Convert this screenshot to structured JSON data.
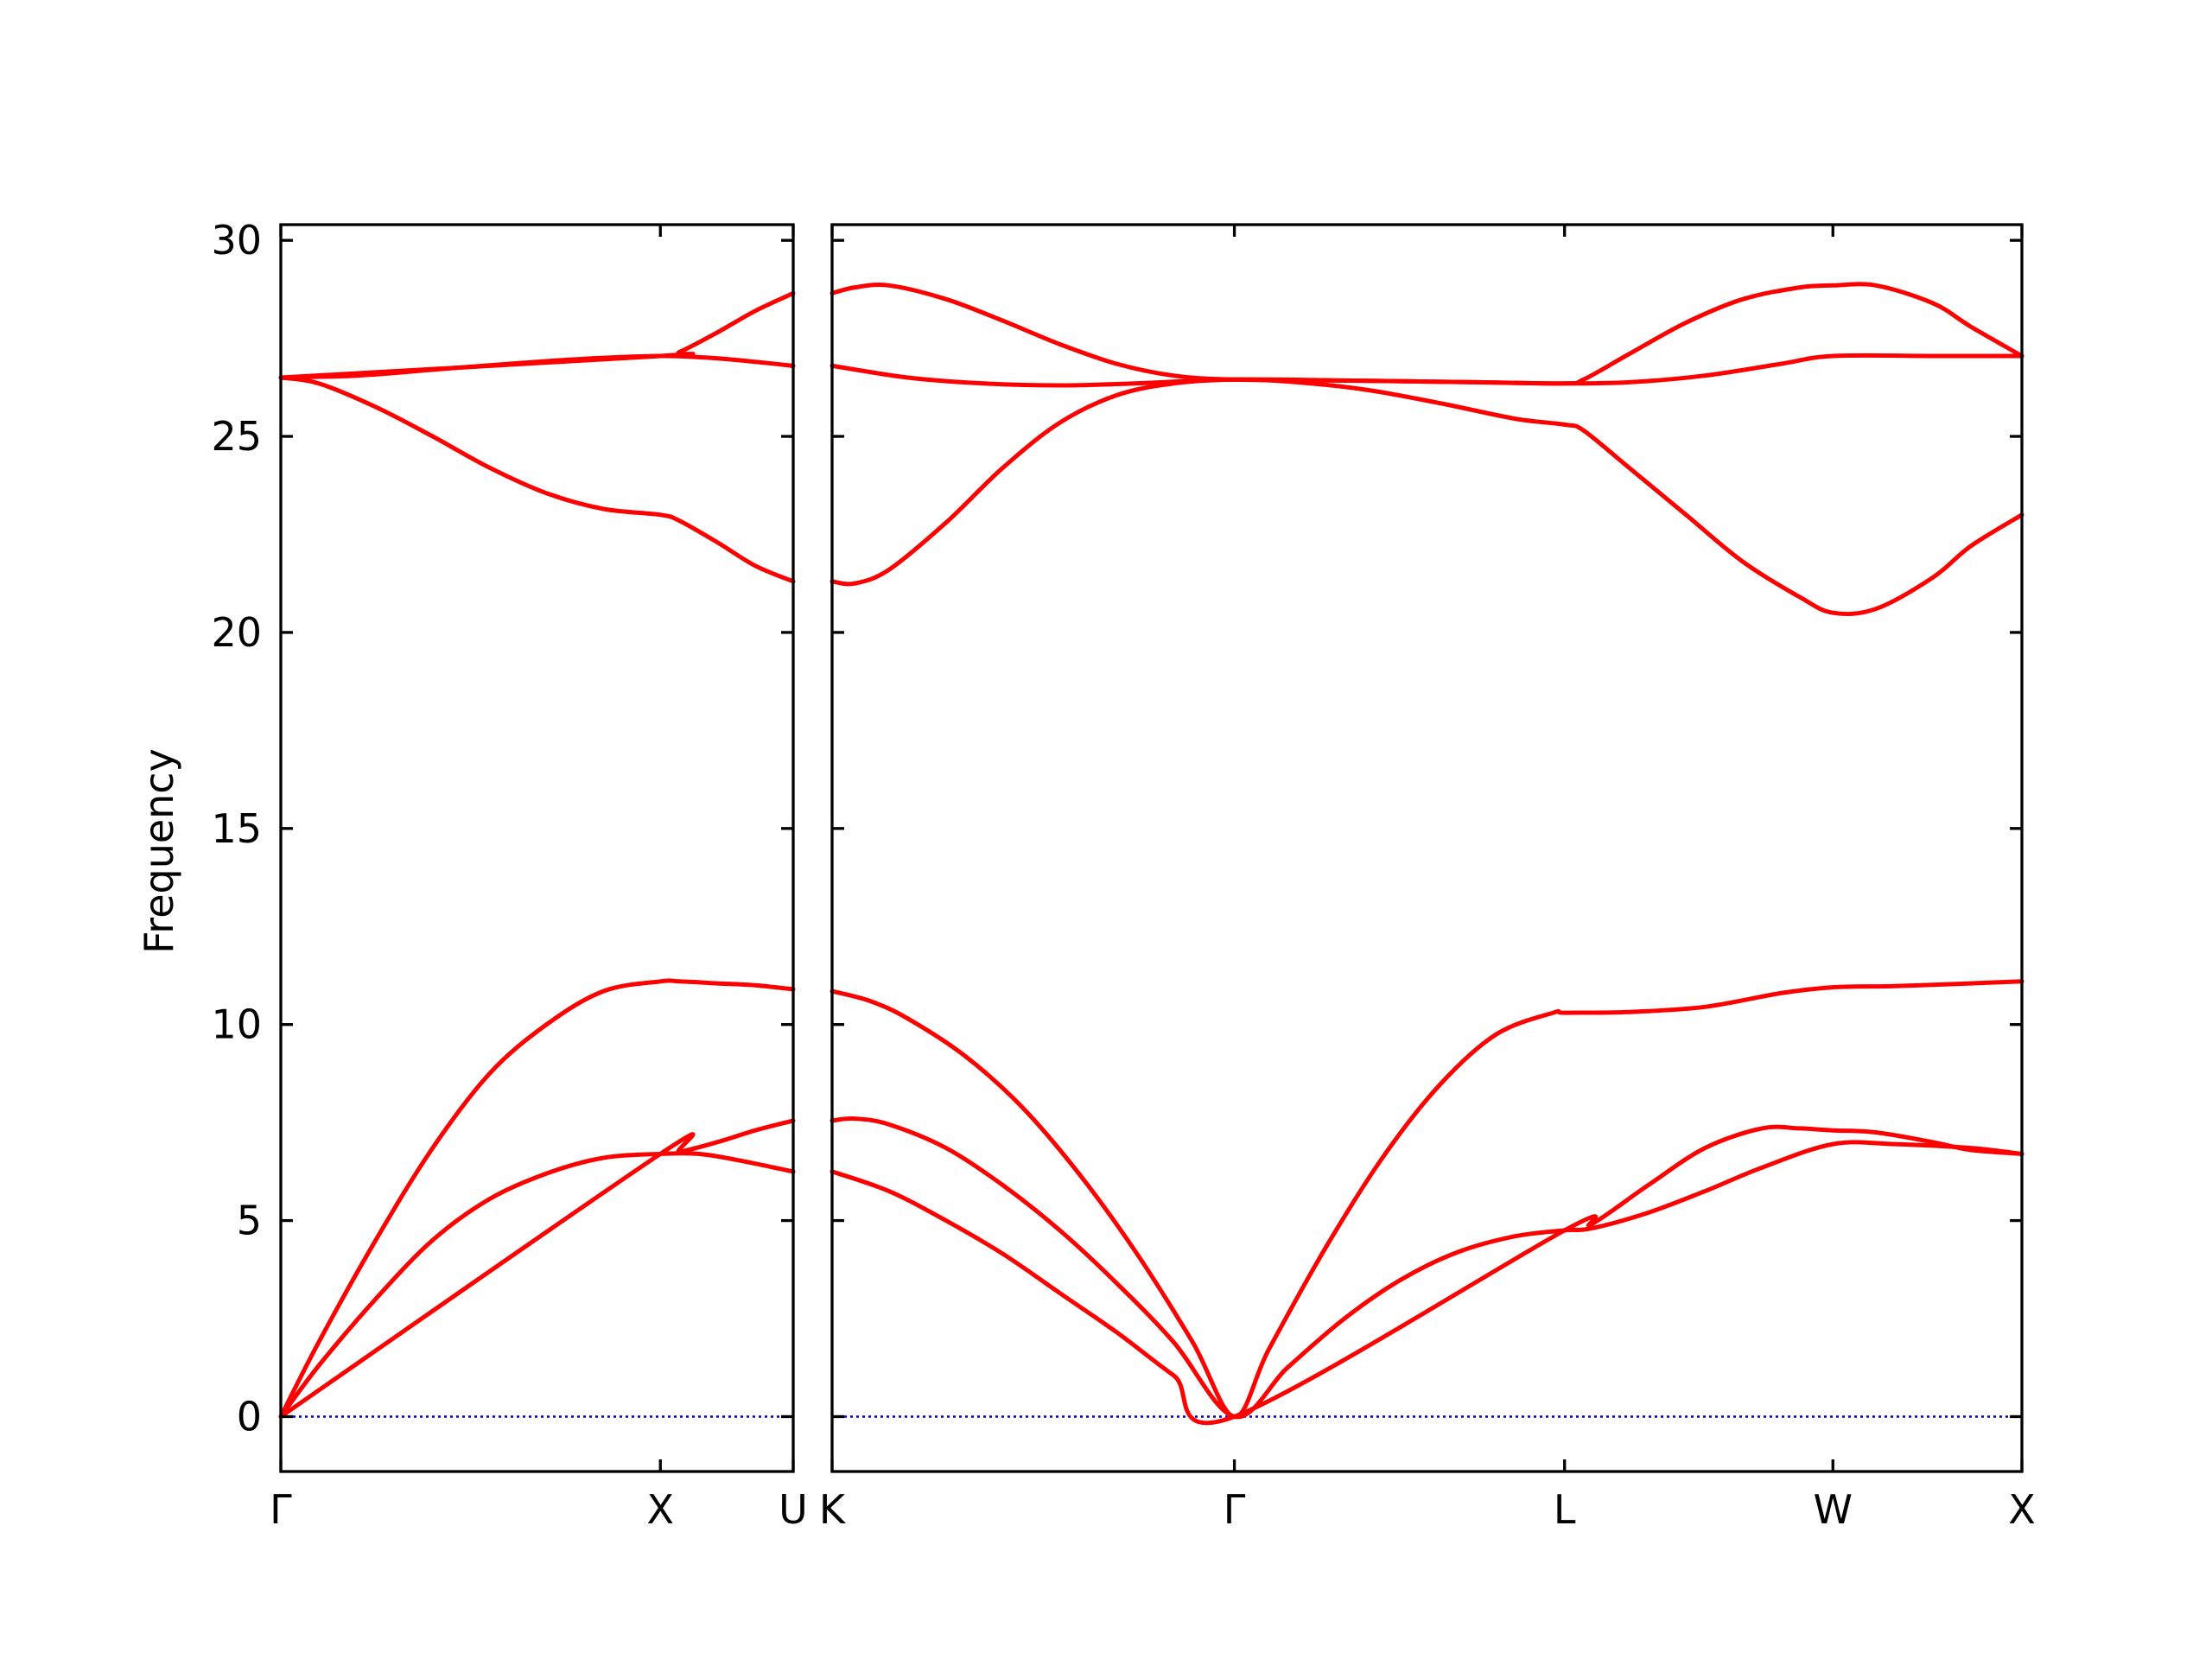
{
  "chart_data": {
    "type": "line",
    "title": "",
    "ylabel": "Frequency",
    "ylim": [
      -1.4,
      30.4
    ],
    "yticks": [
      0,
      5,
      10,
      15,
      20,
      25,
      30
    ],
    "ytick_labels": [
      "0",
      "5",
      "10",
      "15",
      "20",
      "25",
      "30"
    ],
    "band_color": "#ff0000",
    "zero_line_color": "#0000cc",
    "grid": false,
    "panels": [
      {
        "xlim": [
          0,
          1.35
        ],
        "xticks": [
          {
            "x": 0,
            "label": "Γ"
          },
          {
            "x": 1.0,
            "label": "X"
          },
          {
            "x": 1.35,
            "label": "U"
          }
        ],
        "series": [
          {
            "x": [
              0,
              0.1,
              0.25,
              0.4,
              0.55,
              0.7,
              0.85,
              1.0,
              1.05,
              1.15,
              1.25,
              1.35
            ],
            "values": [
              0,
              1.9,
              4.5,
              6.85,
              8.75,
              10.0,
              10.85,
              11.1,
              11.1,
              11.05,
              11.0,
              10.9
            ]
          },
          {
            "x": [
              0,
              0.1,
              0.25,
              0.4,
              0.55,
              0.7,
              0.85,
              1.0,
              1.1,
              1.2,
              1.35
            ],
            "values": [
              0,
              1.3,
              3.0,
              4.5,
              5.55,
              6.2,
              6.6,
              6.7,
              6.7,
              6.55,
              6.25
            ]
          },
          {
            "x": [
              0,
              1.0,
              1.05,
              1.15,
              1.25,
              1.35
            ],
            "values": [
              0,
              6.7,
              6.75,
              7.0,
              7.3,
              7.55
            ]
          },
          {
            "x": [
              0,
              0.1,
              0.25,
              0.4,
              0.55,
              0.7,
              0.85,
              1.0,
              1.05,
              1.15,
              1.25,
              1.35
            ],
            "values": [
              26.5,
              26.35,
              25.75,
              25.0,
              24.2,
              23.55,
              23.15,
              23.0,
              22.85,
              22.3,
              21.7,
              21.3
            ]
          },
          {
            "x": [
              0,
              0.2,
              0.4,
              0.6,
              0.8,
              1.0,
              1.1,
              1.2,
              1.35
            ],
            "values": [
              26.5,
              26.55,
              26.7,
              26.85,
              26.98,
              27.05,
              27.02,
              26.95,
              26.8
            ]
          },
          {
            "x": [
              0,
              1.0,
              1.05,
              1.15,
              1.25,
              1.35
            ],
            "values": [
              26.5,
              27.05,
              27.15,
              27.65,
              28.2,
              28.65
            ]
          }
        ],
        "zero_line": true
      },
      {
        "xlim": [
          0,
          3.135
        ],
        "xticks": [
          {
            "x": 0,
            "label": "K"
          },
          {
            "x": 1.06,
            "label": "Γ"
          },
          {
            "x": 1.93,
            "label": "L"
          },
          {
            "x": 2.637,
            "label": "W"
          },
          {
            "x": 3.135,
            "label": "X"
          }
        ],
        "series": [
          {
            "x": [
              0,
              0.1,
              0.2,
              0.35,
              0.5,
              0.65,
              0.8,
              0.95,
              1.06,
              1.15,
              1.3,
              1.45,
              1.6,
              1.75,
              1.9,
              1.93,
              2.1,
              2.3,
              2.5,
              2.637,
              2.8,
              3.0,
              3.135
            ],
            "values": [
              10.85,
              10.6,
              10.15,
              9.2,
              7.9,
              6.2,
              4.2,
              1.9,
              0,
              1.7,
              4.3,
              6.6,
              8.45,
              9.75,
              10.3,
              10.3,
              10.32,
              10.45,
              10.8,
              10.95,
              10.98,
              11.05,
              11.1
            ]
          },
          {
            "x": [
              0,
              0.06,
              0.15,
              0.3,
              0.45,
              0.6,
              0.75,
              0.9,
              1.06,
              1.2,
              1.35,
              1.5,
              1.65,
              1.8,
              1.93,
              2.0,
              2.15,
              2.3,
              2.45,
              2.637,
              2.8,
              3.0,
              3.135
            ],
            "values": [
              7.55,
              7.6,
              7.45,
              6.85,
              5.9,
              4.75,
              3.4,
              1.9,
              0,
              1.25,
              2.5,
              3.5,
              4.2,
              4.6,
              4.75,
              4.8,
              5.2,
              5.75,
              6.35,
              6.95,
              6.95,
              6.85,
              6.7
            ]
          },
          {
            "x": [
              0,
              0.15,
              0.3,
              0.45,
              0.6,
              0.75,
              0.9,
              1.06,
              1.93,
              2.0,
              2.15,
              2.3,
              2.45,
              2.55,
              2.637,
              2.75,
              2.9,
              3.0,
              3.135
            ],
            "values": [
              6.25,
              5.75,
              5.0,
              4.15,
              3.15,
              2.15,
              1.05,
              0,
              4.75,
              4.9,
              5.9,
              6.85,
              7.35,
              7.35,
              7.3,
              7.25,
              7.0,
              6.8,
              6.7
            ]
          },
          {
            "x": [
              0,
              0.06,
              0.15,
              0.3,
              0.45,
              0.6,
              0.75,
              0.9,
              1.06,
              1.2,
              1.4,
              1.6,
              1.8,
              1.93,
              1.98,
              2.1,
              2.25,
              2.4,
              2.55,
              2.637,
              2.75,
              2.9,
              3.0,
              3.135
            ],
            "values": [
              21.3,
              21.25,
              21.6,
              22.8,
              24.2,
              25.35,
              26.05,
              26.35,
              26.45,
              26.4,
              26.2,
              25.85,
              25.45,
              25.3,
              25.15,
              24.2,
              23.0,
              21.8,
              20.9,
              20.5,
              20.6,
              21.4,
              22.2,
              23.0
            ]
          },
          {
            "x": [
              0,
              0.2,
              0.4,
              0.6,
              0.8,
              1.06,
              1.4,
              1.7,
              1.93,
              2.1,
              2.3,
              2.5,
              2.637,
              2.9,
              3.135
            ],
            "values": [
              26.8,
              26.5,
              26.35,
              26.3,
              26.35,
              26.45,
              26.42,
              26.38,
              26.35,
              26.38,
              26.55,
              26.85,
              27.05,
              27.05,
              27.05
            ]
          },
          {
            "x": [
              0,
              0.06,
              0.15,
              0.3,
              0.45,
              0.6,
              0.75,
              0.9,
              1.06,
              1.4,
              1.7,
              1.93,
              1.98,
              2.1,
              2.25,
              2.4,
              2.55,
              2.637,
              2.75,
              2.9,
              3.0,
              3.135
            ],
            "values": [
              28.65,
              28.8,
              28.85,
              28.5,
              27.95,
              27.35,
              26.85,
              26.55,
              26.45,
              26.42,
              26.38,
              26.35,
              26.45,
              27.1,
              27.9,
              28.5,
              28.8,
              28.85,
              28.85,
              28.4,
              27.8,
              27.05
            ]
          }
        ],
        "zero_line": true
      }
    ]
  }
}
